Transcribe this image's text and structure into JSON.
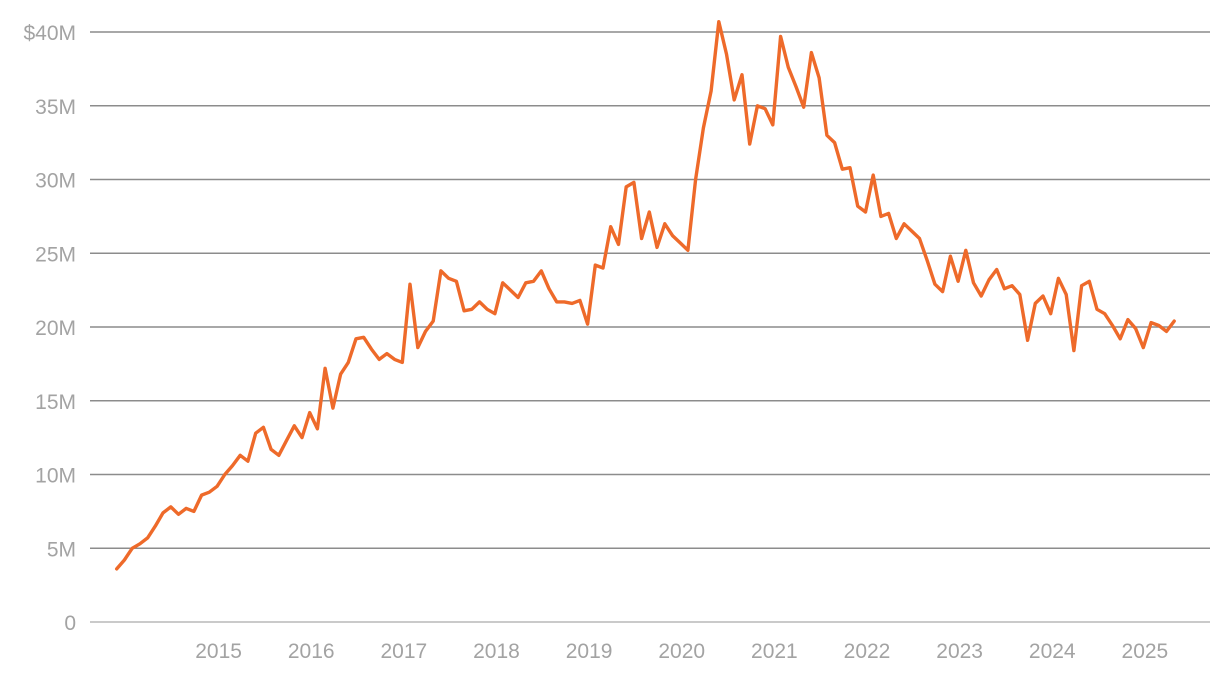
{
  "chart_data": {
    "type": "line",
    "title": "",
    "xlabel": "",
    "ylabel": "",
    "x_ticks": [
      "2015",
      "2016",
      "2017",
      "2018",
      "2019",
      "2020",
      "2021",
      "2022",
      "2023",
      "2024",
      "2025"
    ],
    "y_ticks": [
      {
        "value": 0,
        "label": "0"
      },
      {
        "value": 5000000,
        "label": "5M"
      },
      {
        "value": 10000000,
        "label": "10M"
      },
      {
        "value": 15000000,
        "label": "15M"
      },
      {
        "value": 20000000,
        "label": "20M"
      },
      {
        "value": 25000000,
        "label": "25M"
      },
      {
        "value": 30000000,
        "label": "30M"
      },
      {
        "value": 35000000,
        "label": "35M"
      },
      {
        "value": 40000000,
        "label": "$40M"
      }
    ],
    "xlim": [
      "2014-01",
      "2025-07"
    ],
    "ylim": [
      0,
      40000000
    ],
    "grid": true,
    "legend": "none",
    "colors": {
      "line": "#ee6a2a",
      "grid": "#8c8c8c",
      "tick_text": "#a3a3a3"
    },
    "series": [
      {
        "x": [
          "2014-02",
          "2014-03",
          "2014-04",
          "2014-05",
          "2014-06",
          "2014-07",
          "2014-08",
          "2014-09",
          "2014-10",
          "2014-11",
          "2014-12",
          "2015-01",
          "2015-02",
          "2015-03",
          "2015-04",
          "2015-05",
          "2015-06",
          "2015-07",
          "2015-08",
          "2015-09",
          "2015-10",
          "2015-11",
          "2015-12",
          "2016-01",
          "2016-02",
          "2016-03",
          "2016-04",
          "2016-05",
          "2016-06",
          "2016-07",
          "2016-08",
          "2016-09",
          "2016-10",
          "2016-11",
          "2016-12",
          "2017-01",
          "2017-02",
          "2017-03",
          "2017-04",
          "2017-05",
          "2017-06",
          "2017-07",
          "2017-08",
          "2017-09",
          "2017-10",
          "2017-11",
          "2017-12",
          "2018-01",
          "2018-02",
          "2018-03",
          "2018-04",
          "2018-05",
          "2018-06",
          "2018-07",
          "2018-08",
          "2018-09",
          "2018-10",
          "2018-11",
          "2018-12",
          "2019-01",
          "2019-02",
          "2019-03",
          "2019-04",
          "2019-05",
          "2019-06",
          "2019-07",
          "2019-08",
          "2019-09",
          "2019-10",
          "2019-11",
          "2019-12",
          "2020-01",
          "2020-02",
          "2020-03",
          "2020-04",
          "2020-05",
          "2020-06",
          "2020-07",
          "2020-08",
          "2020-09",
          "2020-10",
          "2020-11",
          "2020-12",
          "2021-01",
          "2021-02",
          "2021-03",
          "2021-04",
          "2021-05",
          "2021-06",
          "2021-07",
          "2021-08",
          "2021-09",
          "2021-10",
          "2021-11",
          "2021-12",
          "2022-01",
          "2022-02",
          "2022-03",
          "2022-04",
          "2022-05",
          "2022-06",
          "2022-07",
          "2022-08",
          "2022-09",
          "2022-10",
          "2022-11",
          "2022-12",
          "2023-01",
          "2023-02",
          "2023-03",
          "2023-04",
          "2023-05",
          "2023-06",
          "2023-07",
          "2023-08",
          "2023-09",
          "2023-10",
          "2023-11",
          "2023-12",
          "2024-01",
          "2024-02",
          "2024-03",
          "2024-04",
          "2024-05",
          "2024-06",
          "2024-07",
          "2024-08",
          "2024-09",
          "2024-10",
          "2024-11",
          "2024-12",
          "2025-01",
          "2025-02",
          "2025-03",
          "2025-04",
          "2025-05",
          "2025-06",
          "2025-07"
        ],
        "values": [
          3600000,
          4200000,
          5000000,
          5300000,
          5700000,
          6500000,
          7400000,
          7800000,
          7300000,
          7700000,
          7500000,
          8600000,
          8800000,
          9200000,
          10000000,
          10600000,
          11300000,
          10900000,
          12800000,
          13200000,
          11700000,
          11300000,
          12300000,
          13300000,
          12500000,
          14200000,
          13100000,
          17200000,
          14500000,
          16800000,
          17600000,
          19200000,
          19300000,
          18500000,
          17800000,
          18200000,
          17800000,
          17600000,
          22900000,
          18600000,
          19700000,
          20400000,
          23800000,
          23300000,
          23100000,
          21100000,
          21200000,
          21700000,
          21200000,
          20900000,
          23000000,
          22500000,
          22000000,
          23000000,
          23100000,
          23800000,
          22600000,
          21700000,
          21700000,
          21600000,
          21800000,
          20200000,
          24200000,
          24000000,
          26800000,
          25600000,
          29500000,
          29800000,
          26000000,
          27800000,
          25400000,
          27000000,
          26200000,
          25700000,
          25200000,
          30000000,
          33500000,
          36000000,
          40700000,
          38500000,
          35400000,
          37100000,
          32400000,
          35000000,
          34800000,
          33700000,
          39700000,
          37600000,
          36300000,
          34900000,
          38600000,
          36900000,
          33000000,
          32500000,
          30700000,
          30800000,
          28200000,
          27800000,
          30300000,
          27500000,
          27700000,
          26000000,
          27000000,
          26500000,
          26000000,
          24500000,
          22900000,
          22400000,
          24800000,
          23100000,
          25200000,
          23000000,
          22100000,
          23200000,
          23900000,
          22600000,
          22800000,
          22200000,
          19100000,
          21600000,
          22100000,
          20900000,
          23300000,
          22200000,
          18400000,
          22800000,
          23100000,
          21200000,
          20900000,
          20100000,
          19200000,
          20500000,
          19900000,
          18600000,
          20300000,
          20100000,
          19700000,
          20400000
        ]
      }
    ]
  }
}
